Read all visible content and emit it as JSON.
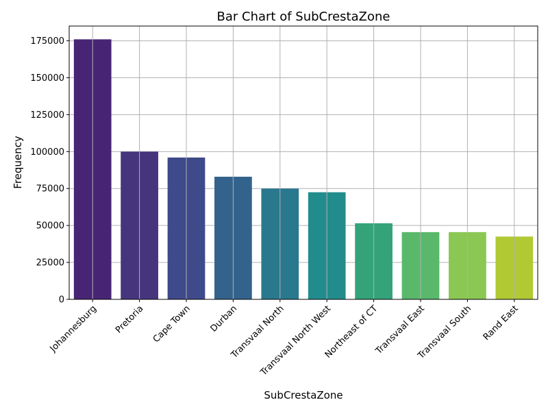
{
  "chart_data": {
    "type": "bar",
    "title": "Bar Chart of SubCrestaZone",
    "xlabel": "SubCrestaZone",
    "ylabel": "Frequency",
    "categories": [
      "Johannesburg",
      "Pretoria",
      "Cape Town",
      "Durban",
      "Transvaal North",
      "Transvaal North West",
      "Northeast of CT",
      "Transvaal East",
      "Transvaal South",
      "Rand East"
    ],
    "values": [
      176000,
      100000,
      96000,
      83000,
      75000,
      72500,
      51500,
      45500,
      45500,
      42500
    ],
    "colors": [
      "#482475",
      "#46357d",
      "#3f4a8a",
      "#33638d",
      "#2a788e",
      "#228c8d",
      "#35a37a",
      "#5ab86b",
      "#8ac753",
      "#b1c933"
    ],
    "ylim": [
      0,
      185000
    ],
    "yticks": [
      0,
      25000,
      50000,
      75000,
      100000,
      125000,
      150000,
      175000
    ],
    "grid": true
  }
}
